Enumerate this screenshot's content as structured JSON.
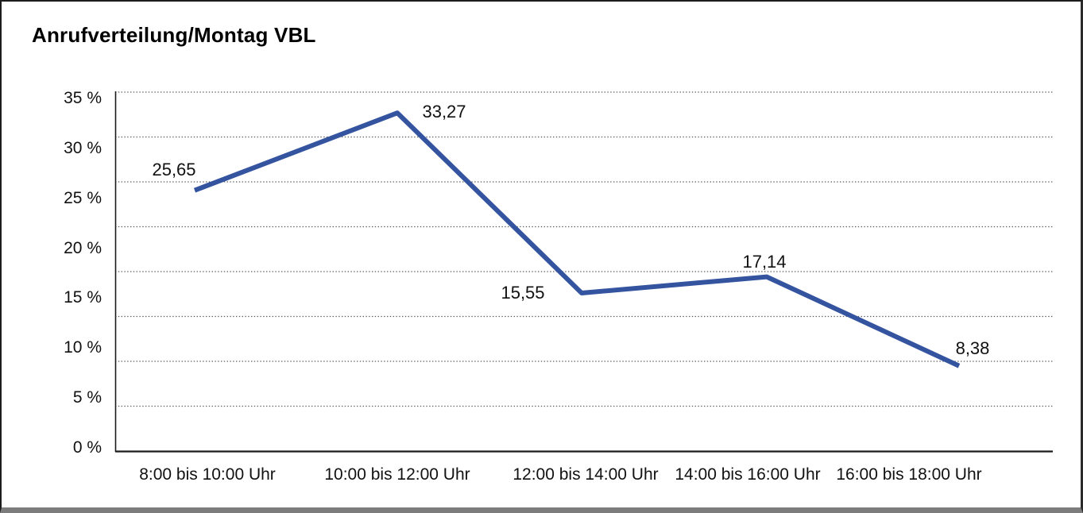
{
  "title": "Anrufverteilung/Montag VBL",
  "chart_data": {
    "type": "line",
    "title": "Anrufverteilung/Montag VBL",
    "categories": [
      "8:00 bis 10:00 Uhr",
      "10:00 bis 12:00 Uhr",
      "12:00 bis 14:00 Uhr",
      "14:00 bis 16:00 Uhr",
      "16:00 bis 18:00 Uhr"
    ],
    "values": [
      25.65,
      33.27,
      15.55,
      17.14,
      8.38
    ],
    "point_labels": [
      "25,65",
      "33,27",
      "15,55",
      "17,14",
      "8,38"
    ],
    "y_tick_labels": [
      "0 %",
      "5 %",
      "10 %",
      "15 %",
      "20 %",
      "25 %",
      "30 %",
      "35 %"
    ],
    "ylim": [
      0,
      35
    ],
    "y_tick_step": 5,
    "xlabel": "",
    "ylabel": "",
    "grid": "horizontal-dotted",
    "legend": "none",
    "colors": {
      "line": "#3454A0",
      "text": "#111111",
      "grid": "#3f3f3f",
      "axis": "#1a1a1a",
      "background": "#ffffff"
    }
  }
}
